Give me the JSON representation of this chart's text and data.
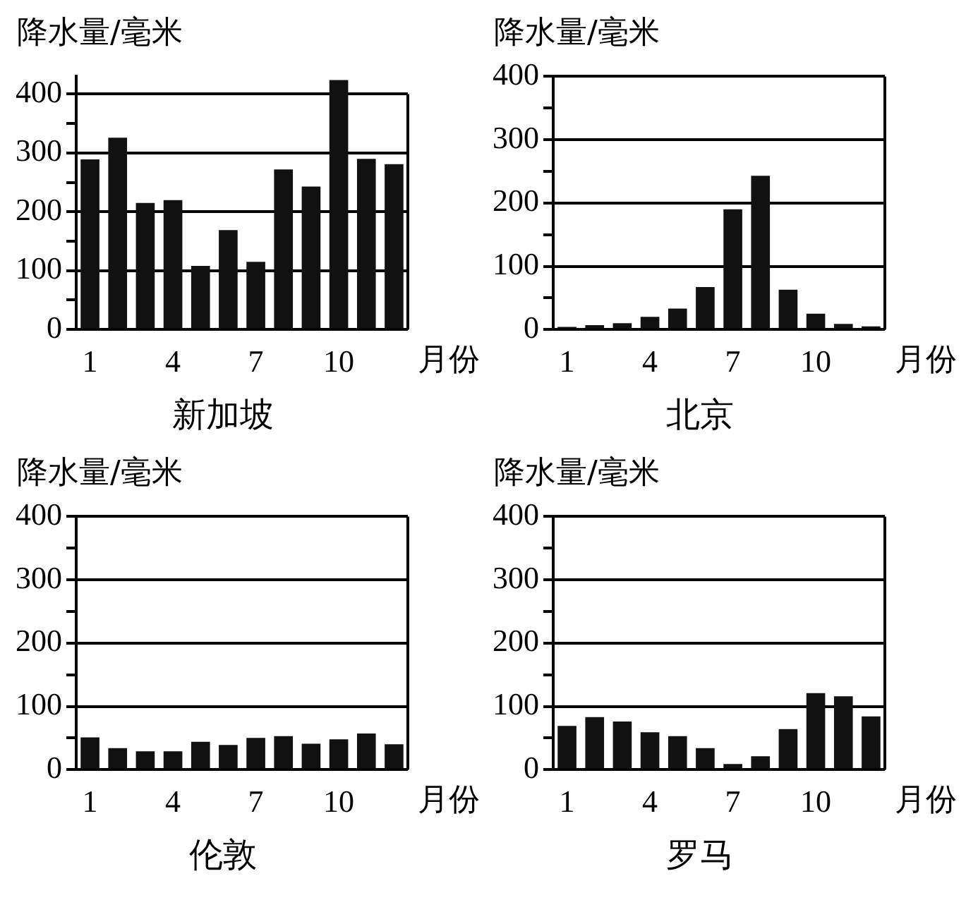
{
  "chart_data": [
    {
      "type": "bar",
      "title": "新加坡",
      "ylabel": "降水量/毫米",
      "xlabel": "月份",
      "categories": [
        "1",
        null,
        null,
        "4",
        null,
        null,
        "7",
        null,
        null,
        "10",
        null,
        null
      ],
      "values": [
        289,
        326,
        215,
        220,
        108,
        169,
        115,
        272,
        243,
        424,
        290,
        281
      ],
      "color": "#111111",
      "ylim": [
        0,
        430
      ],
      "yticks": [
        0,
        {
          "value": 50,
          "label": null
        },
        100,
        {
          "value": 150,
          "label": null
        },
        200,
        {
          "value": 250,
          "label": null
        },
        300,
        {
          "value": 350,
          "label": null
        },
        400
      ],
      "grid": "y"
    },
    {
      "type": "bar",
      "title": "北京",
      "ylabel": "降水量/毫米",
      "xlabel": "月份",
      "categories": [
        "1",
        null,
        null,
        "4",
        null,
        null,
        "7",
        null,
        null,
        "10",
        null,
        null
      ],
      "values": [
        4,
        7,
        10,
        20,
        33,
        67,
        190,
        243,
        63,
        25,
        9,
        5
      ],
      "color": "#111111",
      "ylim": [
        0,
        400
      ],
      "yticks": [
        0,
        {
          "value": 50,
          "label": null
        },
        100,
        {
          "value": 150,
          "label": null
        },
        200,
        {
          "value": 250,
          "label": null
        },
        300,
        {
          "value": 350,
          "label": null
        },
        400
      ],
      "grid": "y"
    },
    {
      "type": "bar",
      "title": "伦敦",
      "ylabel": "降水量/毫米",
      "xlabel": "月份",
      "categories": [
        "1",
        null,
        null,
        "4",
        null,
        null,
        "7",
        null,
        null,
        "10",
        null,
        null
      ],
      "values": [
        51,
        34,
        29,
        29,
        44,
        39,
        50,
        53,
        41,
        48,
        57,
        40
      ],
      "color": "#111111",
      "ylim": [
        0,
        400
      ],
      "yticks": [
        0,
        {
          "value": 50,
          "label": null
        },
        100,
        {
          "value": 150,
          "label": null
        },
        200,
        {
          "value": 250,
          "label": null
        },
        300,
        {
          "value": 350,
          "label": null
        },
        400
      ],
      "grid": "y"
    },
    {
      "type": "bar",
      "title": "罗马",
      "ylabel": "降水量/毫米",
      "xlabel": "月份",
      "categories": [
        "1",
        null,
        null,
        "4",
        null,
        null,
        "7",
        null,
        null,
        "10",
        null,
        null
      ],
      "values": [
        69,
        83,
        76,
        59,
        53,
        34,
        9,
        21,
        64,
        121,
        116,
        84
      ],
      "color": "#111111",
      "ylim": [
        0,
        400
      ],
      "yticks": [
        0,
        {
          "value": 50,
          "label": null
        },
        100,
        {
          "value": 150,
          "label": null
        },
        200,
        {
          "value": 250,
          "label": null
        },
        300,
        {
          "value": 350,
          "label": null
        },
        400
      ],
      "grid": "y"
    }
  ]
}
